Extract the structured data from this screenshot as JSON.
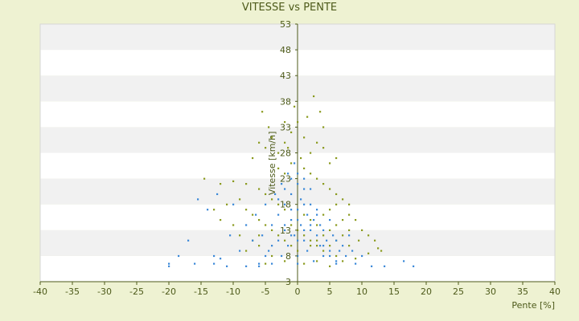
{
  "chart_data": {
    "type": "scatter",
    "title": "VITESSE vs PENTE",
    "xlabel": "Pente [%]",
    "ylabel": "Vitesse [km/h]",
    "xlim": [
      -40,
      40
    ],
    "ylim": [
      3,
      53
    ],
    "xticks": [
      -40,
      -35,
      -30,
      -25,
      -20,
      -15,
      -10,
      -5,
      0,
      5,
      10,
      15,
      20,
      25,
      30,
      35,
      40
    ],
    "yticks": [
      3,
      8,
      13,
      18,
      23,
      28,
      33,
      38,
      43,
      48,
      53
    ],
    "y_axis_at_x": 0,
    "grid": "alternating horizontal bands",
    "legend": "none",
    "series": [
      {
        "color": "#8a9a1e",
        "points": [
          [
            -5.5,
            36
          ],
          [
            -4.5,
            33
          ],
          [
            -6,
            30
          ],
          [
            -5,
            29
          ],
          [
            -7,
            27
          ],
          [
            -4,
            31
          ],
          [
            -3,
            28
          ],
          [
            -2,
            30
          ],
          [
            -1,
            32
          ],
          [
            0,
            34
          ],
          [
            1,
            31
          ],
          [
            2,
            28
          ],
          [
            3,
            30
          ],
          [
            4,
            29
          ],
          [
            5,
            26
          ],
          [
            6,
            27
          ],
          [
            -14.5,
            23
          ],
          [
            -12,
            22
          ],
          [
            -10,
            22.5
          ],
          [
            -8,
            22
          ],
          [
            -6,
            21
          ],
          [
            -9,
            19
          ],
          [
            -11,
            18
          ],
          [
            -8,
            17
          ],
          [
            -7,
            16
          ],
          [
            -6,
            15
          ],
          [
            -5,
            14
          ],
          [
            -4,
            13
          ],
          [
            -3,
            12
          ],
          [
            -2,
            11
          ],
          [
            -1,
            10
          ],
          [
            0,
            9
          ],
          [
            2,
            10
          ],
          [
            3,
            11
          ],
          [
            4,
            12
          ],
          [
            5,
            13
          ],
          [
            6,
            14
          ],
          [
            7,
            15
          ],
          [
            8,
            16
          ],
          [
            9,
            15
          ],
          [
            10,
            13
          ],
          [
            11,
            12
          ],
          [
            12,
            11
          ],
          [
            12.5,
            9.5
          ],
          [
            11,
            8.5
          ],
          [
            9,
            7.5
          ],
          [
            6,
            8
          ],
          [
            8,
            10
          ],
          [
            -8,
            9
          ],
          [
            -6,
            10
          ],
          [
            -4,
            8
          ],
          [
            -2,
            7
          ],
          [
            1,
            6.5
          ],
          [
            3,
            7
          ],
          [
            5,
            6
          ],
          [
            7,
            7
          ],
          [
            -3,
            25
          ],
          [
            -2,
            24
          ],
          [
            -1,
            26
          ],
          [
            1,
            25
          ],
          [
            2,
            24
          ],
          [
            3,
            23
          ],
          [
            4,
            22
          ],
          [
            5,
            21
          ],
          [
            6,
            20
          ],
          [
            7,
            19
          ],
          [
            8,
            18
          ],
          [
            -5,
            20
          ],
          [
            -4,
            19
          ],
          [
            -3,
            18
          ],
          [
            -2,
            17
          ],
          [
            1,
            16
          ],
          [
            2,
            15
          ],
          [
            3,
            14
          ],
          [
            4,
            16
          ],
          [
            5,
            17
          ],
          [
            6,
            18
          ],
          [
            -1,
            14
          ],
          [
            0,
            13
          ],
          [
            1,
            12
          ],
          [
            2,
            11
          ],
          [
            3,
            10
          ],
          [
            4,
            9
          ],
          [
            5,
            10
          ],
          [
            6,
            11
          ],
          [
            7,
            12
          ],
          [
            2.5,
            39
          ],
          [
            3.5,
            36
          ],
          [
            1.5,
            35
          ],
          [
            -0.5,
            37
          ],
          [
            -2,
            34
          ],
          [
            4,
            33
          ],
          [
            -1.5,
            29
          ],
          [
            0.5,
            27
          ],
          [
            -7,
            11
          ],
          [
            -6,
            12
          ],
          [
            -10,
            14
          ],
          [
            -9,
            12
          ],
          [
            13,
            9
          ],
          [
            9.5,
            11
          ],
          [
            8,
            13
          ],
          [
            -12,
            15
          ],
          [
            -13,
            17
          ],
          [
            -5,
            6.5
          ]
        ]
      },
      {
        "color": "#3a88d8",
        "points": [
          [
            -20,
            6
          ],
          [
            -20,
            6.5
          ],
          [
            -18.5,
            8
          ],
          [
            -17,
            11
          ],
          [
            -16,
            6.5
          ],
          [
            -15.5,
            19
          ],
          [
            -14,
            17
          ],
          [
            -13,
            8
          ],
          [
            -13,
            6.5
          ],
          [
            -12.5,
            20
          ],
          [
            -12,
            7.5
          ],
          [
            -11,
            6
          ],
          [
            -10.5,
            12
          ],
          [
            -10,
            18
          ],
          [
            -9,
            9
          ],
          [
            -8,
            14
          ],
          [
            -8,
            6
          ],
          [
            -7,
            11
          ],
          [
            -6.5,
            16
          ],
          [
            -6,
            6
          ],
          [
            -5.5,
            12
          ],
          [
            -5,
            18
          ],
          [
            -4.5,
            9
          ],
          [
            -4,
            14
          ],
          [
            -4,
            6.5
          ],
          [
            -3.5,
            20
          ],
          [
            -3,
            11
          ],
          [
            -3,
            16
          ],
          [
            -2.5,
            8
          ],
          [
            -2.5,
            22
          ],
          [
            -2,
            13
          ],
          [
            -2,
            18
          ],
          [
            -1.5,
            10
          ],
          [
            -1.5,
            24
          ],
          [
            -1,
            15
          ],
          [
            -1,
            20
          ],
          [
            -0.5,
            12
          ],
          [
            -0.5,
            26
          ],
          [
            0,
            17
          ],
          [
            0,
            22
          ],
          [
            0,
            8
          ],
          [
            0.5,
            14
          ],
          [
            0.5,
            19
          ],
          [
            1,
            11
          ],
          [
            1,
            21
          ],
          [
            1.5,
            16
          ],
          [
            1.5,
            9
          ],
          [
            2,
            13
          ],
          [
            2,
            18
          ],
          [
            2.5,
            7
          ],
          [
            2.5,
            15
          ],
          [
            3,
            12
          ],
          [
            3,
            17
          ],
          [
            3.5,
            10
          ],
          [
            3.5,
            14
          ],
          [
            4,
            8
          ],
          [
            4,
            13
          ],
          [
            4.5,
            11
          ],
          [
            5,
            9
          ],
          [
            5,
            15
          ],
          [
            5.5,
            12
          ],
          [
            6,
            7
          ],
          [
            6,
            11
          ],
          [
            6.5,
            9
          ],
          [
            7,
            10
          ],
          [
            7.5,
            8
          ],
          [
            8,
            12
          ],
          [
            8.5,
            9
          ],
          [
            9,
            6.5
          ],
          [
            10,
            8
          ],
          [
            11.5,
            6
          ],
          [
            13.5,
            6
          ],
          [
            16.5,
            7
          ],
          [
            18,
            6
          ],
          [
            -2,
            21
          ],
          [
            -1,
            23
          ],
          [
            0,
            24
          ],
          [
            1,
            23
          ],
          [
            2,
            21
          ],
          [
            -3,
            19
          ],
          [
            -1,
            17
          ],
          [
            1,
            18
          ],
          [
            3,
            16
          ],
          [
            -2,
            14
          ],
          [
            0,
            15
          ],
          [
            2,
            14
          ],
          [
            -1,
            12
          ],
          [
            1,
            13
          ],
          [
            0,
            11
          ],
          [
            -4,
            10
          ],
          [
            4,
            10
          ],
          [
            -5,
            8
          ],
          [
            5,
            8
          ],
          [
            -6,
            6.5
          ],
          [
            6,
            6.5
          ],
          [
            0,
            6.5
          ]
        ]
      }
    ]
  }
}
